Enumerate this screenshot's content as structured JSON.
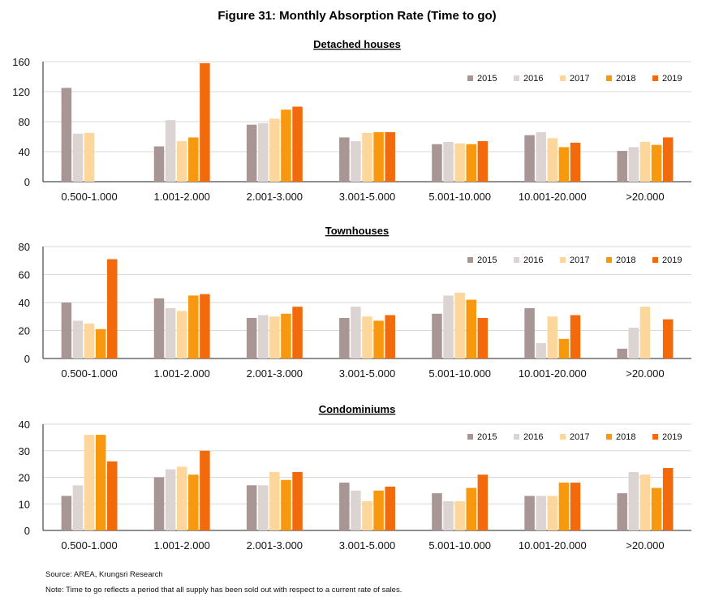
{
  "figure_title": "Figure 31: Monthly Absorption Rate (Time to go)",
  "source": "Source: AREA, Krungsri Research",
  "note": "Note: Time to go reflects a period that all supply has been sold out with respect to a current rate of sales.",
  "colors": {
    "2015": "#a89694",
    "2016": "#dcd3d3",
    "2017": "#fcd69a",
    "2018": "#f7980f",
    "2019": "#f26a0c",
    "grid": "#d9d9d9",
    "axis": "#222222"
  },
  "chart_data": [
    {
      "type": "bar",
      "title": "Detached houses",
      "categories": [
        "0.500-1.000",
        "1.001-2.000",
        "2.001-3.000",
        "3.001-5.000",
        "5.001-10.000",
        "10.001-20.000",
        ">20.000"
      ],
      "ylim": [
        0,
        160
      ],
      "yticks": [
        0,
        40,
        80,
        120,
        160
      ],
      "grid": true,
      "legend": "top-right",
      "series": [
        {
          "name": "2015",
          "values": [
            125,
            47,
            76,
            59,
            50,
            62,
            41
          ]
        },
        {
          "name": "2016",
          "values": [
            64,
            82,
            78,
            54,
            53,
            66,
            46
          ]
        },
        {
          "name": "2017",
          "values": [
            65,
            54,
            84,
            65,
            51,
            58,
            53
          ]
        },
        {
          "name": "2018",
          "values": [
            null,
            59,
            96,
            66,
            50,
            46,
            49
          ]
        },
        {
          "name": "2019",
          "values": [
            null,
            158,
            100,
            66,
            54,
            52,
            59
          ]
        }
      ]
    },
    {
      "type": "bar",
      "title": "Townhouses",
      "categories": [
        "0.500-1.000",
        "1.001-2.000",
        "2.001-3.000",
        "3.001-5.000",
        "5.001-10.000",
        "10.001-20.000",
        ">20.000"
      ],
      "ylim": [
        0,
        80
      ],
      "yticks": [
        0,
        20,
        40,
        60,
        80
      ],
      "grid": true,
      "legend": "top-right",
      "series": [
        {
          "name": "2015",
          "values": [
            40,
            43,
            29,
            29,
            32,
            36,
            7
          ]
        },
        {
          "name": "2016",
          "values": [
            27,
            36,
            31,
            37,
            45,
            11,
            22
          ]
        },
        {
          "name": "2017",
          "values": [
            25,
            34,
            30,
            30,
            47,
            30,
            37
          ]
        },
        {
          "name": "2018",
          "values": [
            21,
            45,
            32,
            27,
            42,
            14,
            null
          ]
        },
        {
          "name": "2019",
          "values": [
            71,
            46,
            37,
            31,
            29,
            31,
            28
          ]
        }
      ]
    },
    {
      "type": "bar",
      "title": "Condominiums",
      "categories": [
        "0.500-1.000",
        "1.001-2.000",
        "2.001-3.000",
        "3.001-5.000",
        "5.001-10.000",
        "10.001-20.000",
        ">20.000"
      ],
      "ylim": [
        0,
        40
      ],
      "yticks": [
        0,
        10,
        20,
        30,
        40
      ],
      "grid": true,
      "legend": "top-right",
      "series": [
        {
          "name": "2015",
          "values": [
            13,
            20,
            17,
            18,
            14,
            13,
            14
          ]
        },
        {
          "name": "2016",
          "values": [
            17,
            23,
            17,
            15,
            11,
            13,
            22
          ]
        },
        {
          "name": "2017",
          "values": [
            36,
            24,
            22,
            11,
            11,
            13,
            21
          ]
        },
        {
          "name": "2018",
          "values": [
            36,
            21,
            19,
            15,
            16,
            18,
            16
          ]
        },
        {
          "name": "2019",
          "values": [
            26,
            30,
            22,
            16.5,
            21,
            18,
            23.5
          ]
        }
      ]
    }
  ]
}
